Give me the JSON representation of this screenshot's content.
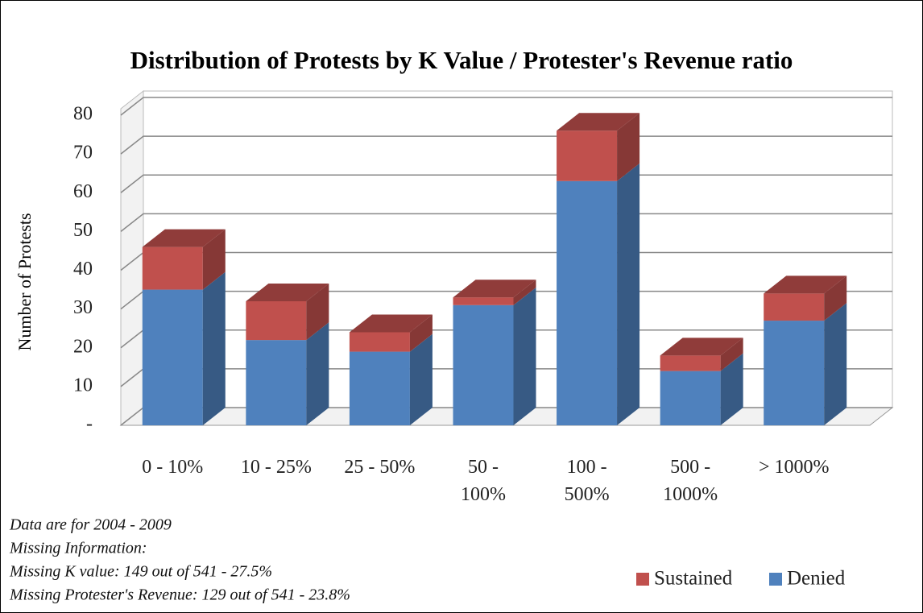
{
  "chart_data": {
    "type": "bar3d_stacked",
    "title": "Distribution of Protests by K Value / Protester's Revenue ratio",
    "y_axis_label": "Number  of  Protests",
    "categories": [
      "0 - 10%",
      "10 - 25%",
      "25 - 50%",
      "50 -\n100%",
      "100 -\n500%",
      "500 -\n1000%",
      "> 1000%"
    ],
    "series": [
      {
        "name": "Denied",
        "color": "#4f81bd",
        "values": [
          35,
          22,
          19,
          31,
          63,
          14,
          27
        ]
      },
      {
        "name": "Sustained",
        "color": "#c0504d",
        "values": [
          11,
          10,
          5,
          2,
          13,
          4,
          7
        ]
      }
    ],
    "ylim": [
      0,
      80
    ],
    "yticks": [
      {
        "value": 0,
        "label": "-"
      },
      10,
      20,
      30,
      40,
      50,
      60,
      70,
      80
    ],
    "grid": true,
    "notes": [
      "Data are for 2004 - 2009",
      "Missing Information:",
      "Missing K value: 149 out of 541 - 27.5%",
      "Missing Protester's Revenue: 129 out of 541 - 23.8%"
    ]
  }
}
